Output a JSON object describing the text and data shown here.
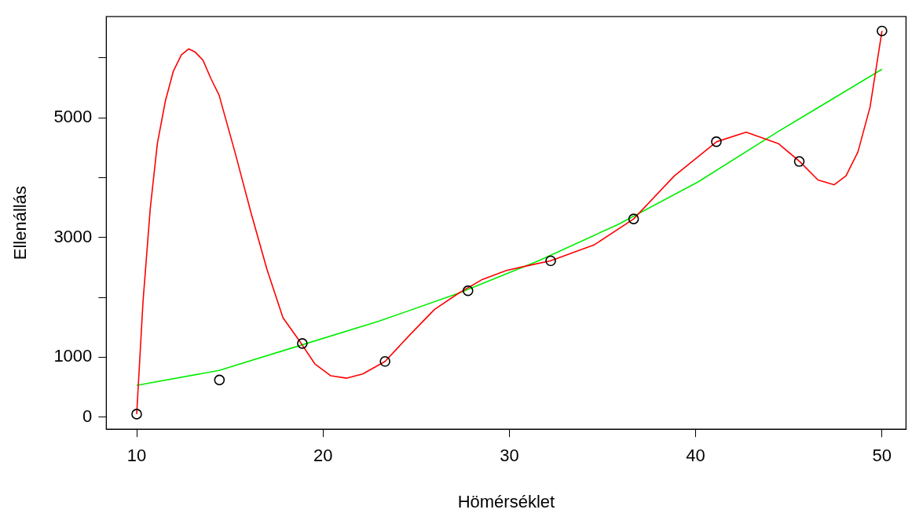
{
  "chart_data": {
    "type": "scatter",
    "xlabel": "Hömérséklet",
    "ylabel": "Ellenállás",
    "xlim": [
      8.37,
      51.29
    ],
    "ylim": [
      -203,
      6689
    ],
    "xticks": [
      10,
      20,
      30,
      40,
      50
    ],
    "yticks": [
      0,
      1000,
      {
        "value": 2000,
        "label": null
      },
      3000,
      {
        "value": 4000,
        "label": null
      },
      5000,
      {
        "value": 6000,
        "label": null
      }
    ],
    "grid": false,
    "legend": false,
    "series": [
      {
        "color": "#000000",
        "marker": "circle",
        "x": [
          10,
          14.44,
          18.89,
          23.33,
          27.78,
          32.22,
          36.67,
          41.11,
          45.56,
          50
        ],
        "values": [
          50,
          620,
          1230,
          930,
          2110,
          2610,
          3310,
          4600,
          4270,
          6450
        ]
      },
      {
        "type": "line",
        "color": "#ff0000",
        "marker": "none",
        "line_style": "solid",
        "x": [
          10,
          10.34,
          10.73,
          11.11,
          11.54,
          11.97,
          12.4,
          12.79,
          13.13,
          13.56,
          13.99,
          14.42,
          15.27,
          16.13,
          16.99,
          17.85,
          18.83,
          19.56,
          20.42,
          21.28,
          22.13,
          23.33,
          24.71,
          25.99,
          27.28,
          28.56,
          29.85,
          31.14,
          32.21,
          34.57,
          36.67,
          38.86,
          41.13,
          42.71,
          44.43,
          45.58,
          46.57,
          47.43,
          48.07,
          48.71,
          49.36,
          50
        ],
        "values": [
          50,
          1930,
          3490,
          4570,
          5280,
          5780,
          6050,
          6150,
          6100,
          5960,
          5650,
          5380,
          4430,
          3420,
          2470,
          1660,
          1230,
          890,
          690,
          650,
          720,
          930,
          1390,
          1800,
          2070,
          2300,
          2450,
          2540,
          2610,
          2880,
          3310,
          4030,
          4600,
          4760,
          4570,
          4270,
          3960,
          3880,
          4030,
          4430,
          5180,
          6450
        ]
      },
      {
        "type": "line",
        "color": "#00ee00",
        "marker": "none",
        "line_style": "solid",
        "x": [
          10,
          14.42,
          18.7,
          22.99,
          27.28,
          31.56,
          35.85,
          40.14,
          44.43,
          50
        ],
        "values": [
          530,
          780,
          1190,
          1600,
          2070,
          2610,
          3220,
          3930,
          4770,
          5810
        ]
      }
    ]
  }
}
